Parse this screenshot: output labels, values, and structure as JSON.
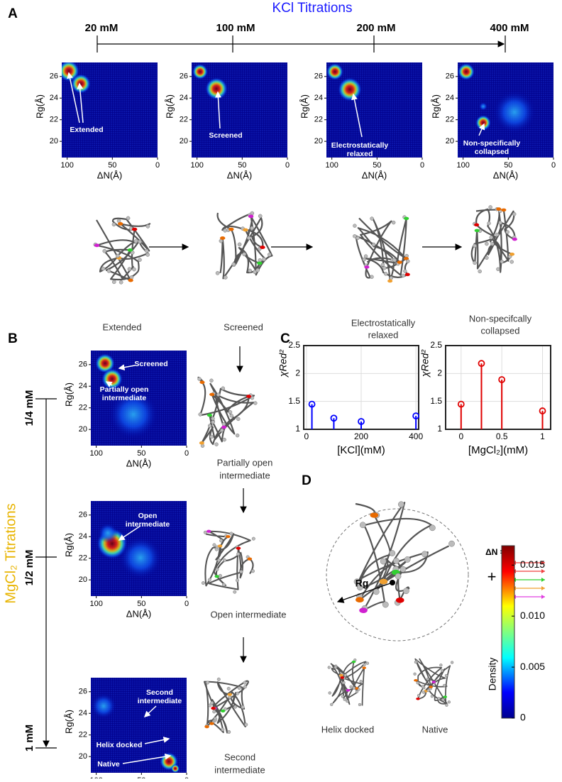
{
  "panel_labels": [
    "A",
    "B",
    "C",
    "D"
  ],
  "kcl_titration": {
    "title": "KCl Titrations",
    "concentrations": [
      "20 mM",
      "100 mM",
      "200 mM",
      "400 mM"
    ]
  },
  "heatmap_axes": {
    "x_label": "ΔN(Å)",
    "y_label": "Rg(Å)",
    "xlim": [
      106,
      0
    ],
    "ylim": [
      18.5,
      27.3
    ],
    "xticks": [
      100,
      50,
      0
    ],
    "yticks": [
      20,
      22,
      24,
      26
    ]
  },
  "heatmaps": [
    {
      "annotations": [
        [
          "Extended"
        ]
      ]
    },
    {
      "annotations": [
        [
          "Screened"
        ]
      ]
    },
    {
      "annotations": [
        [
          "Electrostatically",
          "relaxed"
        ]
      ]
    },
    {
      "annotations": [
        [
          "Non-specifically",
          "collapsed"
        ]
      ]
    },
    {
      "annotations": [
        [
          "Screened"
        ],
        [
          "Partially open",
          "intermediate"
        ]
      ]
    },
    {
      "annotations": [
        [
          "Open",
          "intermediate"
        ]
      ]
    },
    {
      "annotations": [
        [
          "Second",
          "intermediate"
        ],
        [
          "Helix docked"
        ],
        [
          "Native"
        ]
      ]
    }
  ],
  "structures_a": [
    [
      "Extended"
    ],
    [
      "Screened"
    ],
    [
      "Electrostatically",
      "relaxed"
    ],
    [
      "Non-specifcally",
      "collapsed"
    ]
  ],
  "mgcl2_titration": {
    "title": "MgCl₂ Titrations",
    "concentrations": [
      "1/4 mM",
      "1/2 mM",
      "1 mM"
    ]
  },
  "structures_b": [
    [
      "Partially open",
      "intermediate"
    ],
    [
      "Open intermediate"
    ],
    [
      "Second",
      "intermediate"
    ]
  ],
  "panel_c": [
    {
      "type": "stem",
      "x_label": "[KCl](mM)",
      "y_label": "χRed²",
      "color": "#0000ff",
      "x": [
        20,
        100,
        200,
        400
      ],
      "values": [
        1.45,
        1.2,
        1.14,
        1.24
      ],
      "xlim": [
        -10,
        410
      ],
      "ylim": [
        1,
        2.5
      ],
      "xticks": [
        0,
        200,
        400
      ],
      "yticks": [
        1,
        1.5,
        2,
        2.5
      ],
      "grid": true
    },
    {
      "type": "stem",
      "x_label": "[MgCl₂](mM)",
      "y_label": "χRed²",
      "color": "#e00000",
      "x": [
        0,
        0.25,
        0.5,
        1
      ],
      "values": [
        1.45,
        2.18,
        1.89,
        1.33
      ],
      "xlim": [
        -0.19,
        1.1
      ],
      "ylim": [
        1,
        2.5
      ],
      "xticks": [
        0,
        0.5,
        1
      ],
      "yticks": [
        1,
        1.5,
        2,
        2.5
      ],
      "grid": true
    }
  ],
  "panel_d": {
    "rg_label": "Rg",
    "delta_n_label": "ΔN =",
    "plus": "+",
    "structures": [
      "Helix docked",
      "Native"
    ],
    "colorbar": {
      "label": "Density",
      "ylim": [
        0,
        0.0169
      ],
      "ticks": [
        0,
        0.005,
        {
          "value": 0.01,
          "label": "0.010"
        },
        0.015
      ]
    }
  }
}
